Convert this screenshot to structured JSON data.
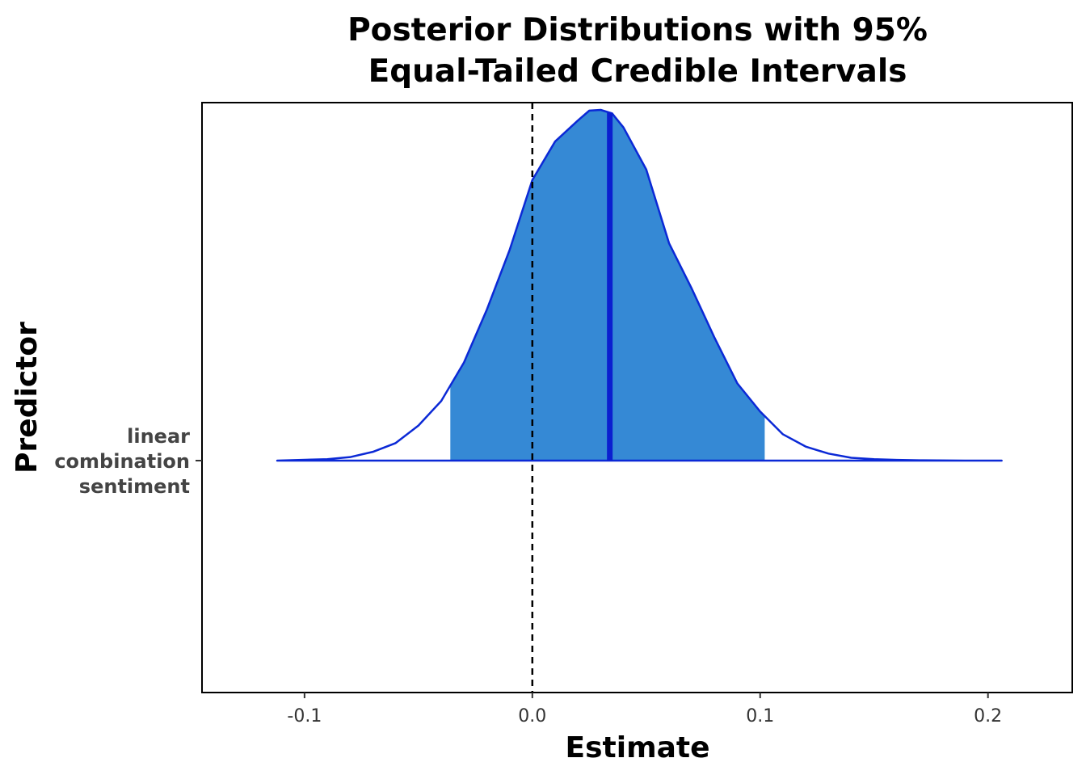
{
  "chart_data": {
    "type": "area",
    "title": [
      "Posterior Distributions with 95%",
      "Equal-Tailed Credible Intervals"
    ],
    "xlabel": "Estimate",
    "ylabel": "Predictor",
    "xlim": [
      -0.145,
      0.237
    ],
    "x_ticks": [
      -0.1,
      0.0,
      0.1,
      0.2
    ],
    "x_tick_labels": [
      "-0.1",
      "0.0",
      "0.1",
      "0.2"
    ],
    "y_categories": [
      "linear\ncombination\nsentiment"
    ],
    "series": [
      {
        "category": "linear\ncombination\nsentiment",
        "density_x": [
          -0.112,
          -0.09,
          -0.08,
          -0.07,
          -0.06,
          -0.05,
          -0.04,
          -0.03,
          -0.02,
          -0.01,
          0.0,
          0.01,
          0.02,
          0.025,
          0.03,
          0.035,
          0.04,
          0.05,
          0.06,
          0.07,
          0.08,
          0.09,
          0.1,
          0.11,
          0.12,
          0.13,
          0.14,
          0.15,
          0.16,
          0.17,
          0.19,
          0.206
        ],
        "density_y": [
          0.0,
          0.004,
          0.01,
          0.025,
          0.05,
          0.1,
          0.17,
          0.28,
          0.43,
          0.6,
          0.8,
          0.91,
          0.97,
          0.998,
          1.0,
          0.99,
          0.95,
          0.83,
          0.62,
          0.49,
          0.35,
          0.22,
          0.14,
          0.075,
          0.04,
          0.02,
          0.008,
          0.004,
          0.002,
          0.001,
          0.0,
          0.0
        ],
        "interval_lower": -0.036,
        "interval_upper": 0.102,
        "point_estimate": 0.034
      }
    ],
    "reference_line_x": 0.0,
    "colors": {
      "fill": "#3589d5",
      "outline": "#0b29d6",
      "median": "#0b1fd0",
      "reference": "#000000"
    },
    "grid": false
  }
}
